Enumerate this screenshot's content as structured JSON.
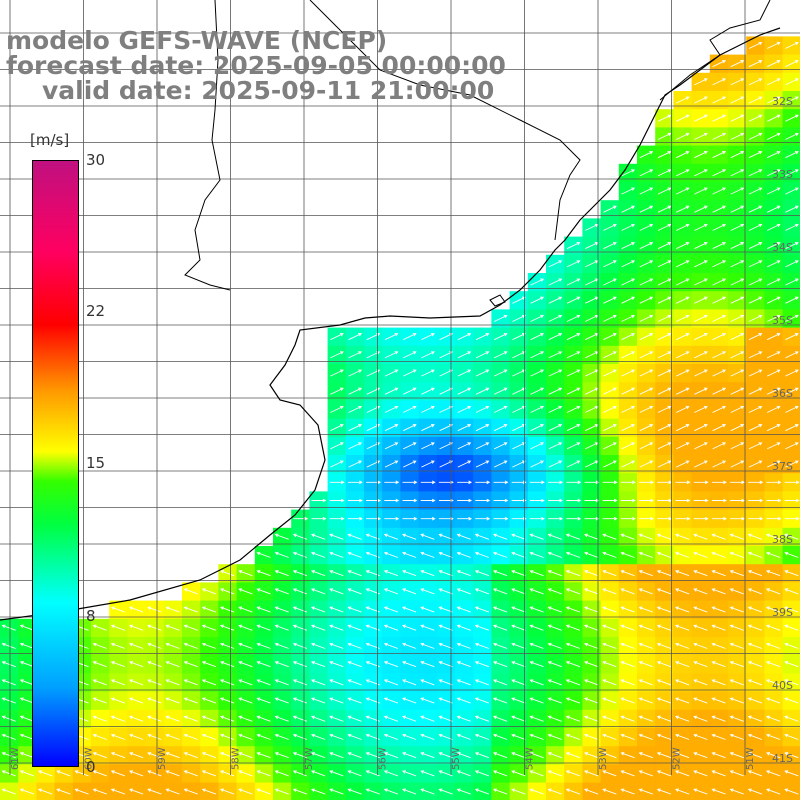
{
  "title": {
    "line1": "modelo GEFS-WAVE (NCEP)",
    "line2": "forecast date: 2025-09-05 00:00:00",
    "line3": "valid date: 2025-09-11 21:00:00"
  },
  "colorbar": {
    "unit": "[m/s]",
    "ticks": [
      "30",
      "22",
      "15",
      "8",
      "0"
    ],
    "range": [
      0,
      30
    ],
    "colors": [
      "#0000ff",
      "#00a0ff",
      "#00ffff",
      "#00ff40",
      "#33ff00",
      "#ffff00",
      "#ff9900",
      "#ff0000",
      "#c01080"
    ]
  },
  "lat_labels": [
    "32S",
    "33S",
    "34S",
    "35S",
    "36S",
    "37S",
    "38S",
    "39S",
    "40S",
    "41S"
  ],
  "lon_labels": [
    "61W",
    "60W",
    "59W",
    "58W",
    "57W",
    "56W",
    "55W",
    "54W",
    "53W",
    "52W",
    "51W"
  ],
  "colors": {
    "land": "#ffffff",
    "coast": "#000000",
    "grid": "#555555",
    "arrow": "#ffffff",
    "label": "#7f7f7f"
  }
}
